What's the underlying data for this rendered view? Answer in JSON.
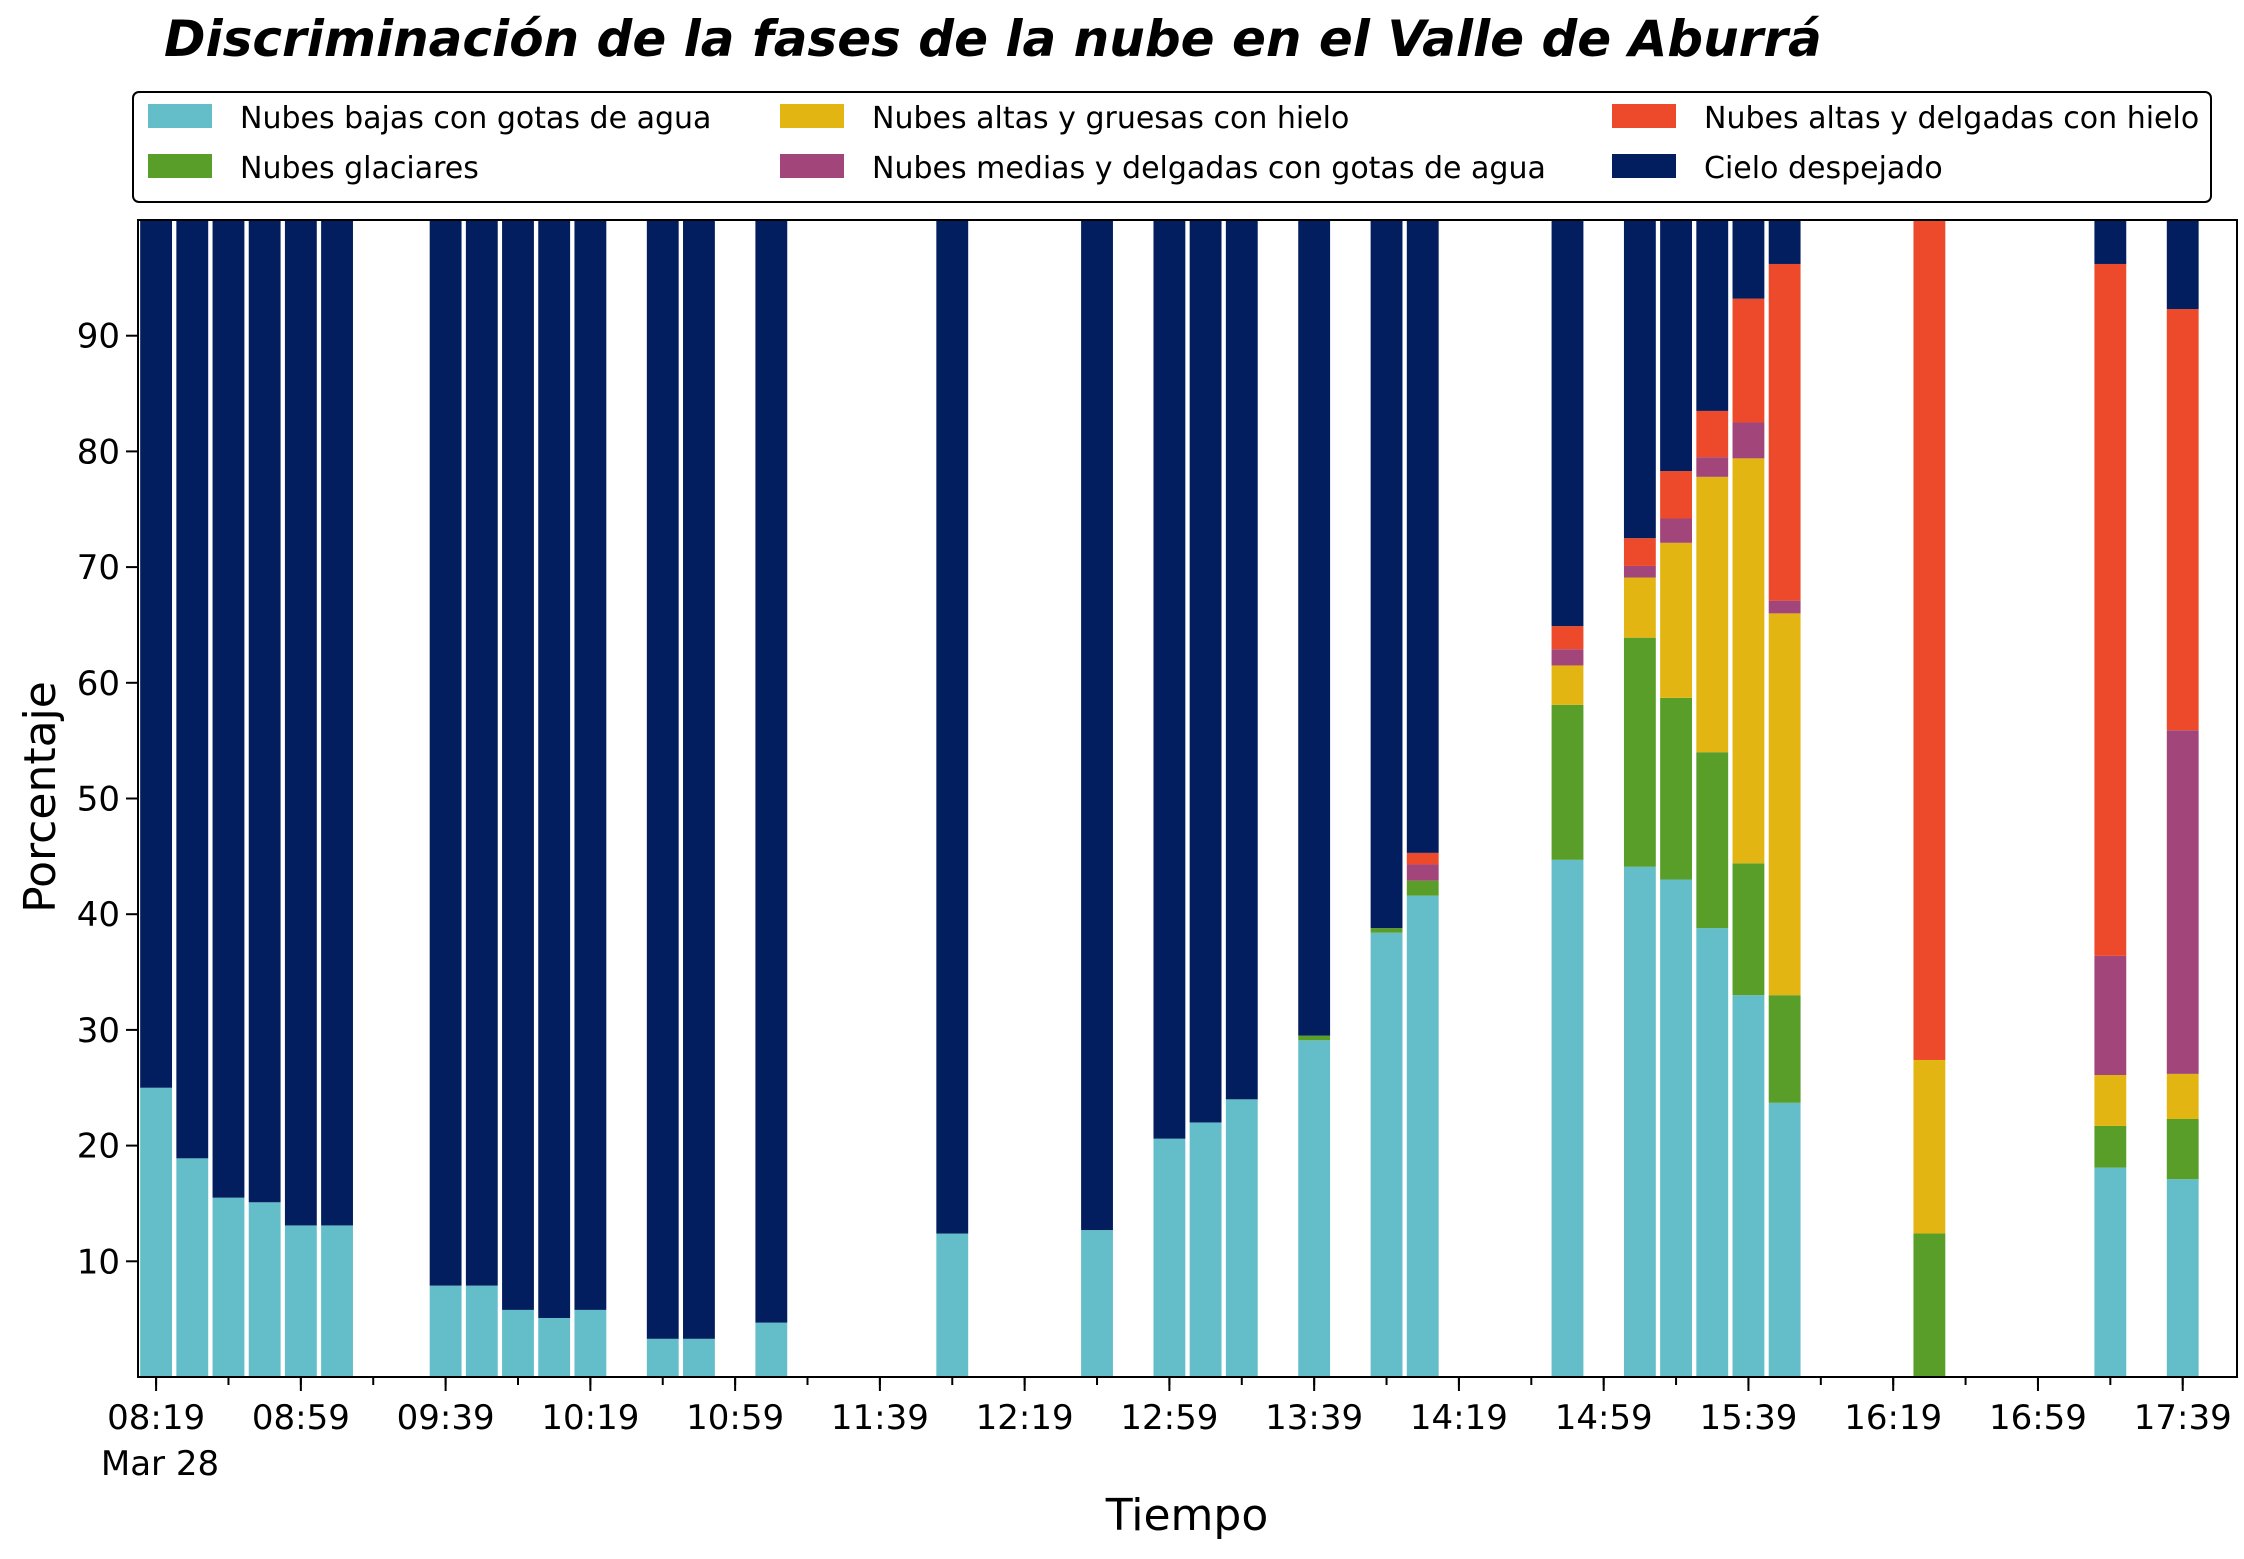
{
  "chart_data": {
    "type": "bar",
    "stacked": true,
    "title": "Discriminación de la fases de la nube en el Valle de Aburrá",
    "xlabel": "Tiempo",
    "ylabel": "Porcentaje",
    "ylim": [
      0,
      100
    ],
    "yticks": [
      10,
      20,
      30,
      40,
      50,
      60,
      70,
      80,
      90
    ],
    "x_start": "08:14",
    "x_end": "17:54",
    "date_label": "Mar 28",
    "xticks": [
      "08:19",
      "08:59",
      "09:39",
      "10:19",
      "10:59",
      "11:39",
      "12:19",
      "12:59",
      "13:39",
      "14:19",
      "14:59",
      "15:39",
      "16:19",
      "16:59",
      "17:39"
    ],
    "grid": false,
    "legend_position": "top",
    "categories": [
      "08:19",
      "08:29",
      "08:39",
      "08:49",
      "08:59",
      "09:09",
      "09:39",
      "09:49",
      "09:59",
      "10:09",
      "10:19",
      "10:39",
      "10:49",
      "11:09",
      "11:59",
      "12:39",
      "12:59",
      "13:09",
      "13:19",
      "13:39",
      "13:59",
      "14:09",
      "14:49",
      "15:09",
      "15:19",
      "15:29",
      "15:39",
      "15:49",
      "16:29",
      "17:19",
      "17:39"
    ],
    "series": [
      {
        "name": "Nubes bajas con gotas de agua",
        "color": "#64bec9",
        "values": [
          25,
          18.9,
          15.5,
          15.1,
          13.1,
          13.1,
          7.9,
          7.9,
          5.8,
          5.1,
          5.8,
          3.3,
          3.3,
          4.7,
          12.4,
          12.7,
          20.6,
          22,
          24,
          29.1,
          38.4,
          41.6,
          44.7,
          44.1,
          43,
          38.8,
          33,
          23.7,
          0,
          18.1,
          17.1
        ]
      },
      {
        "name": "Nubes glaciares",
        "color": "#5a9e2a",
        "values": [
          0,
          0,
          0,
          0,
          0,
          0,
          0,
          0,
          0,
          0,
          0,
          0,
          0,
          0,
          0,
          0,
          0,
          0,
          0,
          0.4,
          0.4,
          1.3,
          13.4,
          19.8,
          15.7,
          15.2,
          11.4,
          9.3,
          12.4,
          3.6,
          5.2
        ]
      },
      {
        "name": "Nubes altas y gruesas con hielo",
        "color": "#e2b513",
        "values": [
          0,
          0,
          0,
          0,
          0,
          0,
          0,
          0,
          0,
          0,
          0,
          0,
          0,
          0,
          0,
          0,
          0,
          0,
          0,
          0,
          0,
          0,
          3.4,
          5.2,
          13.4,
          23.8,
          35.0,
          33.0,
          15.0,
          4.4,
          3.9
        ]
      },
      {
        "name": "Nubes medias y delgadas con gotas de agua",
        "color": "#a2457a",
        "values": [
          0,
          0,
          0,
          0,
          0,
          0,
          0,
          0,
          0,
          0,
          0,
          0,
          0,
          0,
          0,
          0,
          0,
          0,
          0,
          0,
          0,
          1.4,
          1.4,
          1.0,
          2.1,
          1.7,
          3.1,
          1.1,
          0,
          10.3,
          29.7
        ]
      },
      {
        "name": "Nubes altas y delgadas con hielo",
        "color": "#ec4a2a",
        "values": [
          0,
          0,
          0,
          0,
          0,
          0,
          0,
          0,
          0,
          0,
          0,
          0,
          0,
          0,
          0,
          0,
          0,
          0,
          0,
          0,
          0,
          1.0,
          2.0,
          2.4,
          4.1,
          4.0,
          10.7,
          29.1,
          72.6,
          59.8,
          36.4
        ]
      },
      {
        "name": "Cielo despejado",
        "color": "#031e5e",
        "values": [
          75,
          81.1,
          84.5,
          84.9,
          86.9,
          86.9,
          92.1,
          92.1,
          94.2,
          94.9,
          94.2,
          96.7,
          96.7,
          95.3,
          87.6,
          87.3,
          79.4,
          78,
          76,
          70.5,
          61.2,
          54.7,
          35.1,
          27.5,
          21.7,
          16.5,
          6.8,
          3.8,
          0,
          3.8,
          7.7
        ]
      }
    ]
  }
}
